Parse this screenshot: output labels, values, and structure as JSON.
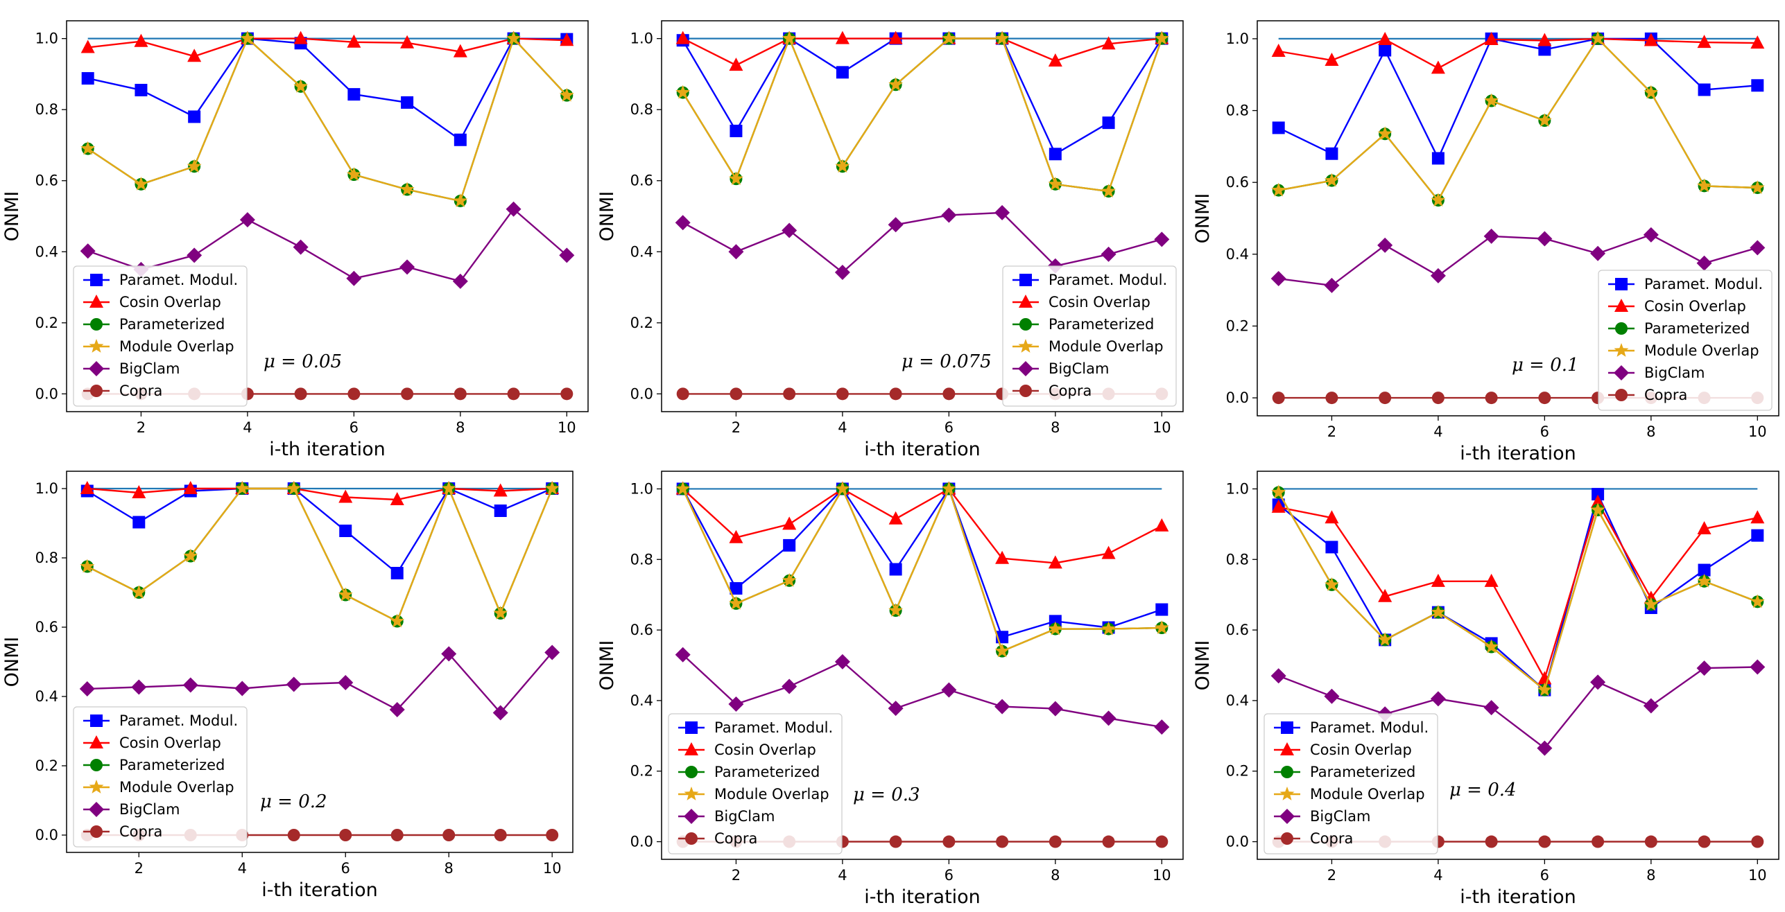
{
  "series_meta": [
    {
      "name": "Paramet. Modul.",
      "color": "#0000ff",
      "marker": "square"
    },
    {
      "name": "Cosin Overlap",
      "color": "#ff0000",
      "marker": "triangle"
    },
    {
      "name": "Parameterized",
      "color": "#008000",
      "marker": "circle"
    },
    {
      "name": "Module Overlap",
      "color": "#e6a817",
      "marker": "star"
    },
    {
      "name": "BigClam",
      "color": "#800080",
      "marker": "diamond"
    },
    {
      "name": "Copra",
      "color": "#a52a2a",
      "marker": "circle"
    }
  ],
  "reference_line": {
    "color": "#1f77b4",
    "value": 1.0
  },
  "chart_data": [
    {
      "type": "line",
      "annotation": "μ = 0.05",
      "xlabel": "i-th iteration",
      "ylabel": "ONMI",
      "x": [
        1,
        2,
        3,
        4,
        5,
        6,
        7,
        8,
        9,
        10
      ],
      "xticks": [
        2,
        4,
        6,
        8,
        10
      ],
      "yticks": [
        "0.0",
        "0.2",
        "0.4",
        "0.6",
        "0.8",
        "1.0"
      ],
      "xlim": [
        0.6,
        10.4
      ],
      "ylim": [
        -0.05,
        1.05
      ],
      "legend": "lower-left",
      "series": [
        {
          "name": "Paramet. Modul.",
          "values": [
            0.888,
            0.855,
            0.78,
            1.0,
            0.987,
            0.843,
            0.82,
            0.715,
            1.0,
            0.998
          ]
        },
        {
          "name": "Cosin Overlap",
          "values": [
            0.975,
            0.992,
            0.95,
            1.0,
            1.0,
            0.99,
            0.988,
            0.963,
            1.0,
            0.995
          ]
        },
        {
          "name": "Parameterized",
          "values": [
            0.69,
            0.59,
            0.64,
            1.0,
            0.865,
            0.617,
            0.575,
            0.543,
            1.0,
            0.84
          ]
        },
        {
          "name": "Module Overlap",
          "values": [
            0.69,
            0.59,
            0.64,
            1.0,
            0.865,
            0.617,
            0.575,
            0.543,
            1.0,
            0.84
          ]
        },
        {
          "name": "BigClam",
          "values": [
            0.402,
            0.35,
            0.39,
            0.49,
            0.413,
            0.325,
            0.357,
            0.317,
            0.52,
            0.39
          ]
        },
        {
          "name": "Copra",
          "values": [
            0,
            0,
            0,
            0,
            0,
            0,
            0,
            0,
            0,
            0
          ]
        }
      ]
    },
    {
      "type": "line",
      "annotation": "μ = 0.075",
      "xlabel": "i-th iteration",
      "ylabel": "ONMI",
      "x": [
        1,
        2,
        3,
        4,
        5,
        6,
        7,
        8,
        9,
        10
      ],
      "xticks": [
        2,
        4,
        6,
        8,
        10
      ],
      "yticks": [
        "0.0",
        "0.2",
        "0.4",
        "0.6",
        "0.8",
        "1.0"
      ],
      "xlim": [
        0.6,
        10.4
      ],
      "ylim": [
        -0.05,
        1.05
      ],
      "legend": "lower-right",
      "series": [
        {
          "name": "Paramet. Modul.",
          "values": [
            0.995,
            0.74,
            1.0,
            0.905,
            1.0,
            1.0,
            1.0,
            0.675,
            0.763,
            1.0
          ]
        },
        {
          "name": "Cosin Overlap",
          "values": [
            1.0,
            0.925,
            1.0,
            1.0,
            1.0,
            1.0,
            1.0,
            0.937,
            0.985,
            1.0
          ]
        },
        {
          "name": "Parameterized",
          "values": [
            0.848,
            0.605,
            1.0,
            0.64,
            0.87,
            1.0,
            1.0,
            0.59,
            0.57,
            1.0
          ]
        },
        {
          "name": "Module Overlap",
          "values": [
            0.848,
            0.605,
            1.0,
            0.64,
            0.87,
            1.0,
            1.0,
            0.59,
            0.57,
            1.0
          ]
        },
        {
          "name": "BigClam",
          "values": [
            0.482,
            0.4,
            0.46,
            0.342,
            0.476,
            0.503,
            0.51,
            0.36,
            0.393,
            0.435
          ]
        },
        {
          "name": "Copra",
          "values": [
            0,
            0,
            0,
            0,
            0,
            0,
            0,
            0,
            0,
            0
          ]
        }
      ]
    },
    {
      "type": "line",
      "annotation": "μ = 0.1",
      "xlabel": "i-th iteration",
      "ylabel": "ONMI",
      "x": [
        1,
        2,
        3,
        4,
        5,
        6,
        7,
        8,
        9,
        10
      ],
      "xticks": [
        2,
        4,
        6,
        8,
        10
      ],
      "yticks": [
        "0.0",
        "0.2",
        "0.4",
        "0.6",
        "0.8",
        "1.0"
      ],
      "xlim": [
        0.6,
        10.4
      ],
      "ylim": [
        -0.05,
        1.05
      ],
      "legend": "lower-right",
      "series": [
        {
          "name": "Paramet. Modul.",
          "values": [
            0.752,
            0.68,
            0.968,
            0.667,
            1.0,
            0.97,
            1.0,
            1.0,
            0.858,
            0.87
          ]
        },
        {
          "name": "Cosin Overlap",
          "values": [
            0.965,
            0.94,
            0.998,
            0.918,
            0.998,
            0.995,
            1.0,
            0.995,
            0.99,
            0.988
          ]
        },
        {
          "name": "Parameterized",
          "values": [
            0.578,
            0.605,
            0.735,
            0.55,
            0.827,
            0.772,
            1.0,
            0.85,
            0.59,
            0.585
          ]
        },
        {
          "name": "Module Overlap",
          "values": [
            0.578,
            0.605,
            0.735,
            0.55,
            0.827,
            0.772,
            1.0,
            0.85,
            0.59,
            0.585
          ]
        },
        {
          "name": "BigClam",
          "values": [
            0.332,
            0.313,
            0.425,
            0.34,
            0.45,
            0.443,
            0.402,
            0.454,
            0.375,
            0.418
          ]
        },
        {
          "name": "Copra",
          "values": [
            0,
            0,
            0,
            0,
            0,
            0,
            0,
            0,
            0,
            0
          ]
        }
      ]
    },
    {
      "type": "line",
      "annotation": "μ = 0.2",
      "xlabel": "i-th iteration",
      "ylabel": "ONMI",
      "x": [
        1,
        2,
        3,
        4,
        5,
        6,
        7,
        8,
        9,
        10
      ],
      "xticks": [
        2,
        4,
        6,
        8,
        10
      ],
      "yticks": [
        "0.0",
        "0.2",
        "0.4",
        "0.6",
        "0.8",
        "1.0"
      ],
      "xlim": [
        0.6,
        10.4
      ],
      "ylim": [
        -0.05,
        1.05
      ],
      "legend": "lower-left",
      "series": [
        {
          "name": "Paramet. Modul.",
          "values": [
            0.993,
            0.903,
            0.993,
            1.0,
            1.0,
            0.878,
            0.756,
            1.0,
            0.936,
            1.0
          ]
        },
        {
          "name": "Cosin Overlap",
          "values": [
            1.0,
            0.988,
            1.0,
            1.0,
            1.0,
            0.975,
            0.968,
            1.0,
            0.993,
            1.0
          ]
        },
        {
          "name": "Parameterized",
          "values": [
            0.775,
            0.7,
            0.805,
            1.0,
            1.0,
            0.693,
            0.617,
            1.0,
            0.64,
            1.0
          ]
        },
        {
          "name": "Module Overlap",
          "values": [
            0.775,
            0.7,
            0.805,
            1.0,
            1.0,
            0.693,
            0.617,
            1.0,
            0.64,
            1.0
          ]
        },
        {
          "name": "BigClam",
          "values": [
            0.422,
            0.427,
            0.433,
            0.423,
            0.435,
            0.44,
            0.362,
            0.523,
            0.353,
            0.527
          ]
        },
        {
          "name": "Copra",
          "values": [
            0,
            0,
            0,
            0,
            0,
            0,
            0,
            0,
            0,
            0
          ]
        }
      ]
    },
    {
      "type": "line",
      "annotation": "μ = 0.3",
      "xlabel": "i-th iteration",
      "ylabel": "ONMI",
      "x": [
        1,
        2,
        3,
        4,
        5,
        6,
        7,
        8,
        9,
        10
      ],
      "xticks": [
        2,
        4,
        6,
        8,
        10
      ],
      "yticks": [
        "0.0",
        "0.2",
        "0.4",
        "0.6",
        "0.8",
        "1.0"
      ],
      "xlim": [
        0.6,
        10.4
      ],
      "ylim": [
        -0.05,
        1.05
      ],
      "legend": "lower-left",
      "series": [
        {
          "name": "Paramet. Modul.",
          "values": [
            1.0,
            0.718,
            0.84,
            1.0,
            0.772,
            1.0,
            0.58,
            0.625,
            0.607,
            0.658
          ]
        },
        {
          "name": "Cosin Overlap",
          "values": [
            1.0,
            0.862,
            0.9,
            1.0,
            0.915,
            1.0,
            0.803,
            0.79,
            0.817,
            0.895
          ]
        },
        {
          "name": "Parameterized",
          "values": [
            1.0,
            0.675,
            0.74,
            1.0,
            0.655,
            1.0,
            0.54,
            0.603,
            0.603,
            0.606
          ]
        },
        {
          "name": "Module Overlap",
          "values": [
            1.0,
            0.675,
            0.74,
            1.0,
            0.655,
            1.0,
            0.54,
            0.603,
            0.603,
            0.606
          ]
        },
        {
          "name": "BigClam",
          "values": [
            0.53,
            0.39,
            0.44,
            0.51,
            0.378,
            0.43,
            0.383,
            0.377,
            0.35,
            0.325
          ]
        },
        {
          "name": "Copra",
          "values": [
            0,
            0,
            0,
            0,
            0,
            0,
            0,
            0,
            0,
            0
          ]
        }
      ]
    },
    {
      "type": "line",
      "annotation": "μ = 0.4",
      "xlabel": "i-th iteration",
      "ylabel": "ONMI",
      "x": [
        1,
        2,
        3,
        4,
        5,
        6,
        7,
        8,
        9,
        10
      ],
      "xticks": [
        2,
        4,
        6,
        8,
        10
      ],
      "yticks": [
        "0.0",
        "0.2",
        "0.4",
        "0.6",
        "0.8",
        "1.0"
      ],
      "xlim": [
        0.6,
        10.4
      ],
      "ylim": [
        -0.05,
        1.05
      ],
      "legend": "lower-left",
      "series": [
        {
          "name": "Paramet. Modul.",
          "values": [
            0.955,
            0.835,
            0.572,
            0.65,
            0.562,
            0.43,
            0.985,
            0.663,
            0.77,
            0.868
          ]
        },
        {
          "name": "Cosin Overlap",
          "values": [
            0.948,
            0.918,
            0.695,
            0.738,
            0.738,
            0.462,
            0.962,
            0.69,
            0.887,
            0.918
          ]
        },
        {
          "name": "Parameterized",
          "values": [
            0.99,
            0.728,
            0.572,
            0.65,
            0.552,
            0.43,
            0.94,
            0.672,
            0.738,
            0.68
          ]
        },
        {
          "name": "Module Overlap",
          "values": [
            0.99,
            0.728,
            0.572,
            0.65,
            0.552,
            0.43,
            0.94,
            0.672,
            0.738,
            0.68
          ]
        },
        {
          "name": "BigClam",
          "values": [
            0.47,
            0.412,
            0.362,
            0.405,
            0.38,
            0.265,
            0.452,
            0.385,
            0.492,
            0.495
          ]
        },
        {
          "name": "Copra",
          "values": [
            0,
            0,
            0,
            0,
            0,
            0,
            0,
            0,
            0,
            0
          ]
        }
      ]
    }
  ]
}
